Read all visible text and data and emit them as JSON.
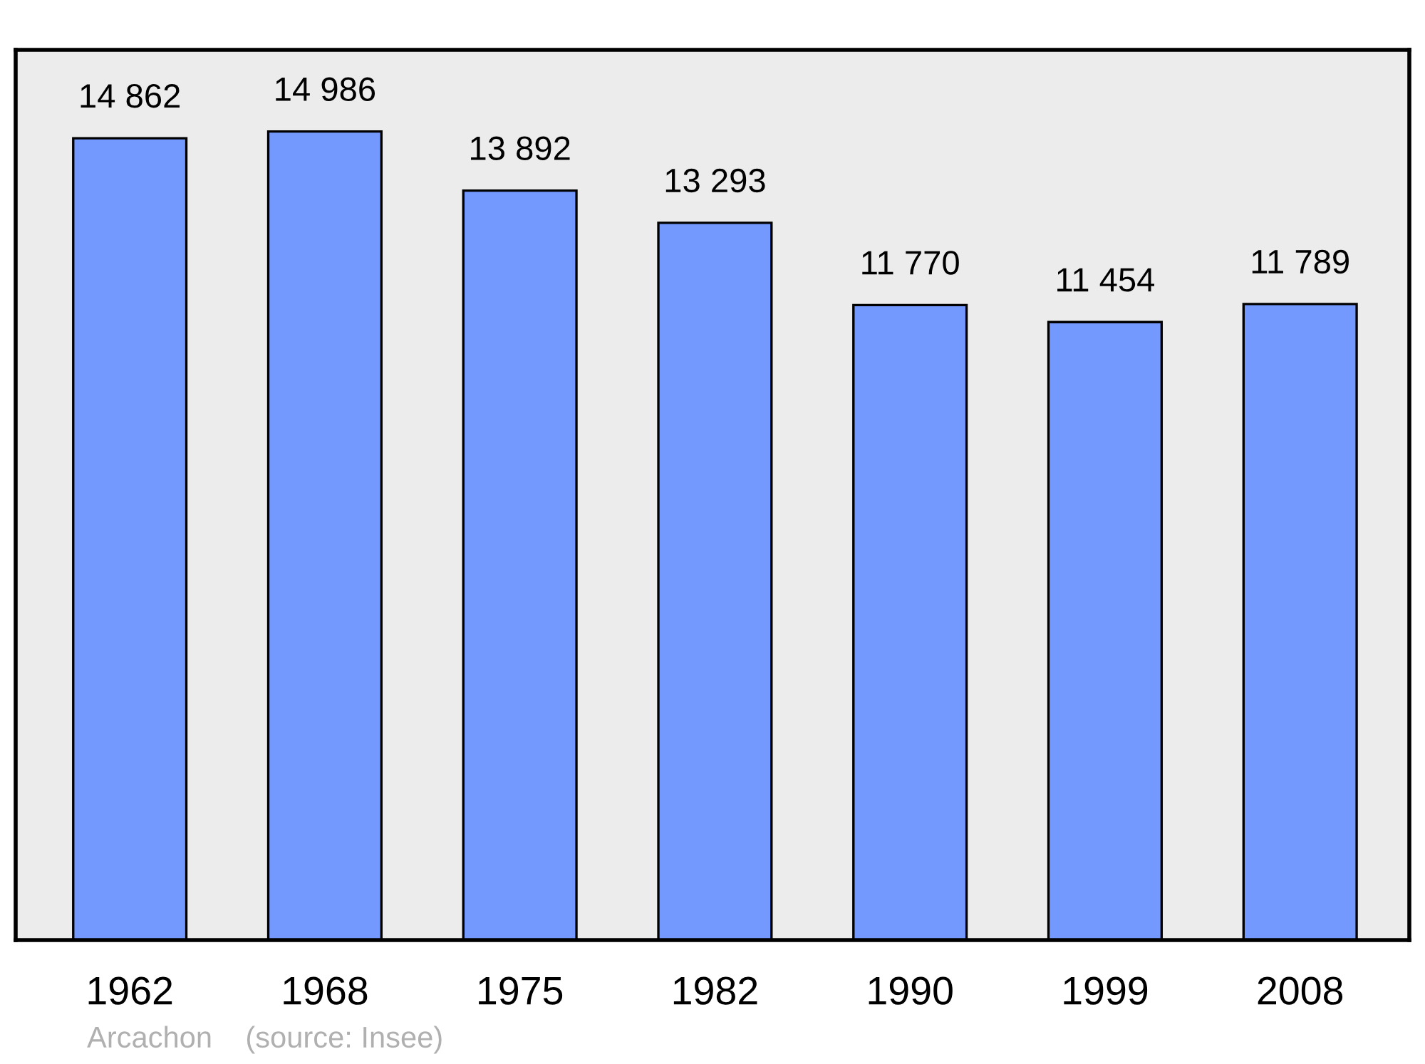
{
  "chart_data": {
    "type": "bar",
    "categories": [
      "1962",
      "1968",
      "1975",
      "1982",
      "1990",
      "1999",
      "2008"
    ],
    "values": [
      14862,
      14986,
      13892,
      13293,
      11770,
      11454,
      11789
    ],
    "value_labels": [
      "14 862",
      "14 986",
      "13 892",
      "13 293",
      "11 770",
      "11 454",
      "11 789"
    ],
    "color": "#7399ff",
    "ylim": [
      0,
      16500
    ],
    "tick_labels": "x",
    "grid": false,
    "legend": false,
    "annotations": [
      "Arcachon    (source: Insee)"
    ]
  }
}
